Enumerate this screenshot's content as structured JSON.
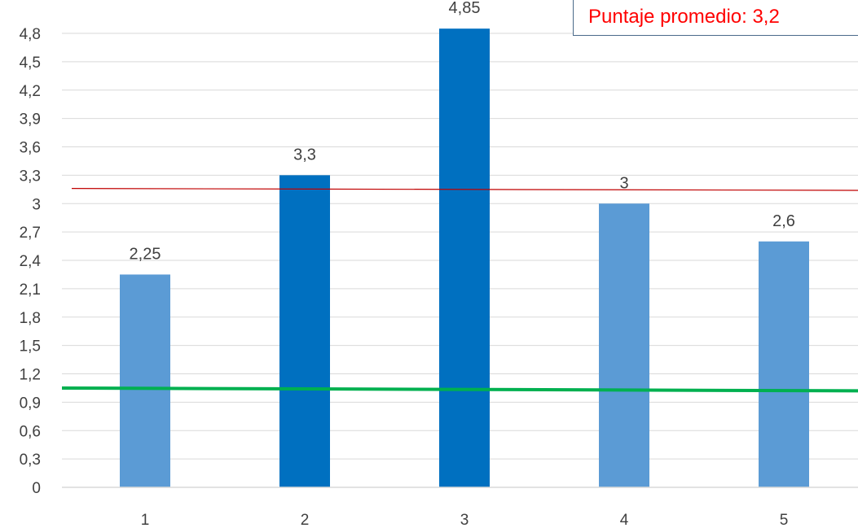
{
  "chart_data": {
    "type": "bar",
    "categories": [
      "1",
      "2",
      "3",
      "4",
      "5"
    ],
    "values": [
      2.25,
      3.3,
      4.85,
      3,
      2.6
    ],
    "data_labels": [
      "2,25",
      "3,3",
      "4,85",
      "3",
      "2,6"
    ],
    "y_ticks": [
      0,
      0.3,
      0.6,
      0.9,
      1.2,
      1.5,
      1.8,
      2.1,
      2.4,
      2.7,
      3,
      3.3,
      3.6,
      3.9,
      4.2,
      4.5,
      4.8
    ],
    "y_tick_labels": [
      "0",
      "0,3",
      "0,6",
      "0,9",
      "1,2",
      "1,5",
      "1,8",
      "2,1",
      "2,4",
      "2,7",
      "3",
      "3,3",
      "3,6",
      "3,9",
      "4,2",
      "4,5",
      "4,8"
    ],
    "ylim": [
      0,
      4.8
    ],
    "grid": true,
    "bar_colors": [
      "#5b9bd5",
      "#0070c0",
      "#0070c0",
      "#5b9bd5",
      "#5b9bd5"
    ],
    "reference_lines": [
      {
        "color": "#c00000",
        "y_start": 3.16,
        "y_end": 3.14
      },
      {
        "color": "#00b050",
        "y_start": 1.05,
        "y_end": 1.02
      }
    ],
    "annotation": {
      "text": "Puntaje promedio: 3,2",
      "color": "#ff0000"
    }
  }
}
